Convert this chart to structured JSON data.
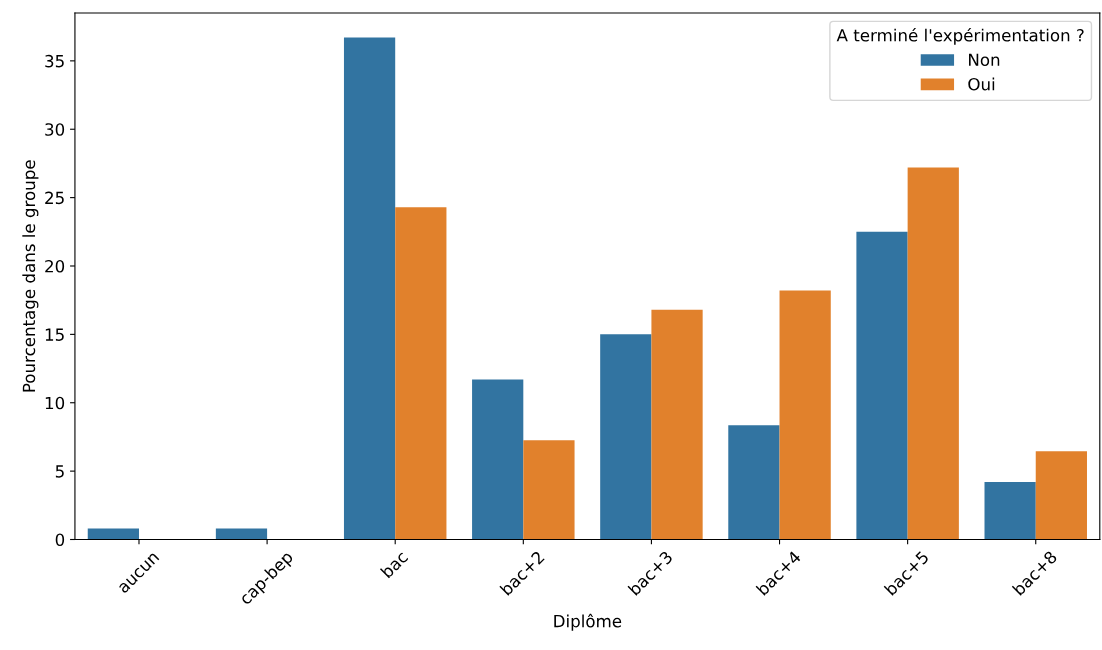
{
  "chart_data": {
    "type": "bar",
    "xlabel": "Diplôme",
    "ylabel": "Pourcentage dans le groupe",
    "categories": [
      "aucun",
      "cap-bep",
      "bac",
      "bac+2",
      "bac+3",
      "bac+4",
      "bac+5",
      "bac+8"
    ],
    "series": [
      {
        "name": "Non",
        "color": "#3274a1",
        "values": [
          0.8,
          0.8,
          36.7,
          11.7,
          15.0,
          8.35,
          22.5,
          4.2
        ]
      },
      {
        "name": "Oui",
        "color": "#e1812c",
        "values": [
          0,
          0,
          24.3,
          7.25,
          16.8,
          18.2,
          27.2,
          6.45
        ]
      }
    ],
    "legend_title": "A terminé l'expérimentation ?",
    "legend": "top right",
    "ylim": [
      0,
      38.5
    ],
    "yticks": [
      0,
      5,
      10,
      15,
      20,
      25,
      30,
      35
    ],
    "grid": false
  }
}
